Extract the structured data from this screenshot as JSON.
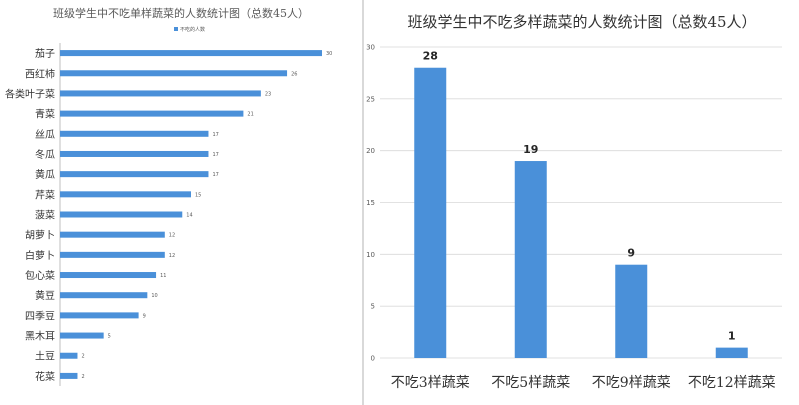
{
  "colors": {
    "bar": "#4a90d9",
    "grid": "#d9d9d9",
    "axis": "#bfbfbf"
  },
  "chart_data": [
    {
      "type": "bar",
      "orientation": "horizontal",
      "title": "班级学生中不吃单样蔬菜的人数统计图（总数45人）",
      "legend": {
        "entries": [
          "不吃的人数"
        ],
        "placement": "top"
      },
      "categories": [
        "茄子",
        "西红柿",
        "各类叶子菜",
        "青菜",
        "丝瓜",
        "冬瓜",
        "黄瓜",
        "芹菜",
        "菠菜",
        "胡萝卜",
        "白萝卜",
        "包心菜",
        "黄豆",
        "四季豆",
        "黑木耳",
        "土豆",
        "花菜"
      ],
      "values": [
        30,
        26,
        23,
        21,
        17,
        17,
        17,
        15,
        14,
        12,
        12,
        11,
        10,
        9,
        5,
        2,
        2
      ],
      "xlim": [
        0,
        30
      ],
      "grid": false
    },
    {
      "type": "bar",
      "orientation": "vertical",
      "title": "班级学生中不吃多样蔬菜的人数统计图（总数45人）",
      "categories": [
        "不吃3样蔬菜",
        "不吃5样蔬菜",
        "不吃9样蔬菜",
        "不吃12样蔬菜"
      ],
      "values": [
        28,
        19,
        9,
        1
      ],
      "ylim": [
        0,
        30
      ],
      "yticks": [
        "0",
        "5",
        "10",
        "15",
        "20",
        "25",
        "30"
      ],
      "grid": true
    }
  ]
}
